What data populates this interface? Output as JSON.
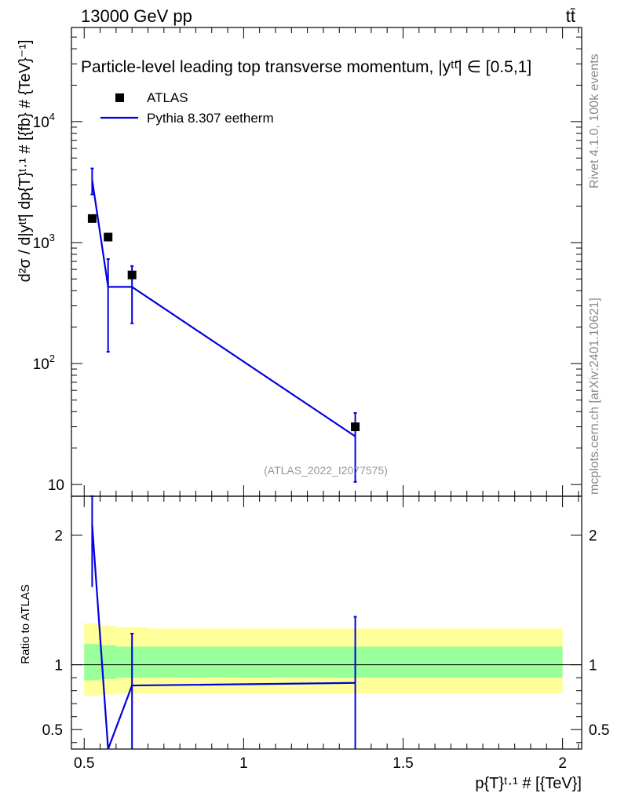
{
  "header": {
    "left": "13000 GeV pp",
    "right": "tt̄"
  },
  "side_labels": {
    "rivet": "Rivet 4.1.0,  100k events",
    "mcplots": "mcplots.cern.ch [arXiv:2401.10621]"
  },
  "analysis_tag": "(ATLAS_2022_I2077575)",
  "colors": {
    "data": "#000000",
    "mc": "#0000e0",
    "band_inner": "#99ff99",
    "band_outer": "#ffff99"
  },
  "chart_data": [
    {
      "type": "scatter",
      "title": "Particle-level leading top transverse momentum, |yᵗᵗ̄| ∈ [0.5,1]",
      "ylabel": "d²σ / d|yᵗᵗ̄| dp{T}ᵗ·¹ # [{fb} # {TeV}⁻¹]",
      "xlabel": "p{T}ᵗ·¹ # [{TeV}]",
      "yscale": "log",
      "ylim": [
        8,
        60000
      ],
      "xlim": [
        0.46,
        2.06
      ],
      "yticks": [
        {
          "v": 10,
          "label": "10"
        },
        {
          "v": 100,
          "label": "10",
          "sup": "2"
        },
        {
          "v": 1000,
          "label": "10",
          "sup": "3"
        },
        {
          "v": 10000,
          "label": "10",
          "sup": "4"
        }
      ],
      "legend": {
        "position": "top-left",
        "data_label": "ATLAS",
        "mc_label": "Pythia 8.307 eetherm"
      },
      "series": [
        {
          "name": "ATLAS",
          "points": [
            {
              "x": 0.525,
              "y": 1580
            },
            {
              "x": 0.575,
              "y": 1110
            },
            {
              "x": 0.65,
              "y": 540
            },
            {
              "x": 1.35,
              "y": 30
            }
          ]
        },
        {
          "name": "Pythia 8.307 eetherm",
          "points": [
            {
              "x": 0.525,
              "y": 3300,
              "lo": 2500,
              "hi": 4100
            },
            {
              "x": 0.575,
              "y": 430,
              "lo": 125,
              "hi": 730
            },
            {
              "x": 0.65,
              "y": 430,
              "lo": 215,
              "hi": 640
            },
            {
              "x": 1.35,
              "y": 25,
              "lo": 10.5,
              "hi": 39
            }
          ]
        }
      ]
    },
    {
      "type": "line",
      "ylabel": "Ratio to ATLAS",
      "xlim": [
        0.46,
        2.06
      ],
      "ylim": [
        0.35,
        2.3
      ],
      "xticks": [
        {
          "v": 0.5,
          "label": "0.5"
        },
        {
          "v": 1,
          "label": "1"
        },
        {
          "v": 1.5,
          "label": "1.5"
        },
        {
          "v": 2,
          "label": "2"
        }
      ],
      "yticks": [
        {
          "v": 0.5,
          "label": "0.5"
        },
        {
          "v": 1,
          "label": "1"
        },
        {
          "v": 2,
          "label": "2"
        }
      ],
      "bands": [
        {
          "x0": 0.5,
          "x1": 0.55,
          "inner": [
            0.88,
            1.16
          ],
          "outer": [
            0.76,
            1.32
          ]
        },
        {
          "x0": 0.55,
          "x1": 0.6,
          "inner": [
            0.89,
            1.15
          ],
          "outer": [
            0.77,
            1.3
          ]
        },
        {
          "x0": 0.6,
          "x1": 0.7,
          "inner": [
            0.9,
            1.14
          ],
          "outer": [
            0.78,
            1.29
          ]
        },
        {
          "x0": 0.7,
          "x1": 2.0,
          "inner": [
            0.9,
            1.14
          ],
          "outer": [
            0.78,
            1.28
          ]
        }
      ],
      "series": [
        {
          "name": "Pythia 8.307 eetherm",
          "points": [
            {
              "x": 0.525,
              "y": 2.08,
              "lo": 1.6,
              "hi": 2.3
            },
            {
              "x": 0.575,
              "y": 0.35,
              "lo": 0.35,
              "hi": 0.35
            },
            {
              "x": 0.65,
              "y": 0.84,
              "lo": 0.35,
              "hi": 1.24
            },
            {
              "x": 1.35,
              "y": 0.86,
              "lo": 0.35,
              "hi": 1.37
            }
          ]
        }
      ]
    }
  ]
}
